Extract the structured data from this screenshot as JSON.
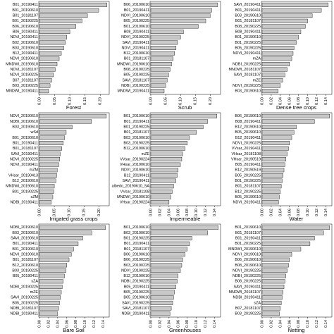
{
  "chart_data": [
    {
      "type": "bar",
      "orientation": "horizontal",
      "x_label": "Forest",
      "color": "#c8c8c8",
      "categories": [
        "B01_20190411",
        "B01_20190610",
        "B01_20181107",
        "B01_20190225",
        "B06_20190610",
        "B06_20190411",
        "NDVI_20190411",
        "B02_20190610",
        "B03_20190610",
        "B12_20190411",
        "NDVI_20190610",
        "MNDWI_20190610",
        "NDVI_20181107",
        "NDVI_20190225",
        "B07_20181107",
        "B03_20190225",
        "MNDWI_20190411"
      ],
      "values": [
        0.222,
        0.195,
        0.158,
        0.14,
        0.12,
        0.1,
        0.09,
        0.085,
        0.08,
        0.072,
        0.065,
        0.058,
        0.052,
        0.046,
        0.04,
        0.035,
        0.03
      ],
      "xlim": [
        0,
        0.225
      ],
      "xticks": [
        {
          "value": 0,
          "label": "0.00"
        },
        0.05,
        {
          "value": 0.1,
          "label": "0.10"
        },
        0.15,
        {
          "value": 0.2,
          "label": "0.20"
        }
      ]
    },
    {
      "type": "bar",
      "orientation": "horizontal",
      "x_label": "Scrub",
      "color": "#c8c8c8",
      "categories": [
        "B06_20190610",
        "B01_20190411",
        "NDVI_20190610",
        "B05_20190225",
        "B01_20190610",
        "B08_20190411",
        "NDVI_20190225",
        "SAVI_20190411",
        "NDVI_20190411",
        "B12_20190610",
        "B01_20181107",
        "MNDWI_20190610",
        "B08_20190225",
        "B05_20190225",
        "SAVI_20181107",
        "NDBI_20190225",
        "MNDWI_20190411"
      ],
      "values": [
        0.225,
        0.205,
        0.2,
        0.185,
        0.16,
        0.11,
        0.1,
        0.09,
        0.085,
        0.08,
        0.075,
        0.07,
        0.065,
        0.06,
        0.055,
        0.05,
        0.045
      ],
      "xlim": [
        0,
        0.23
      ],
      "xticks": [
        {
          "value": 0,
          "label": "0.00"
        },
        0.05,
        {
          "value": 0.1,
          "label": "0.10"
        },
        0.15,
        {
          "value": 0.2,
          "label": "0.20"
        }
      ]
    },
    {
      "type": "bar",
      "orientation": "horizontal",
      "x_label": "Dense tree crops",
      "color": "#c8c8c8",
      "categories": [
        "SAVI_20190411",
        "B01_20190411",
        "B03_20190610",
        "B01_20181107",
        "B08_20190225",
        "B08_20190411",
        "B01_20190610",
        "B01_20190225",
        "B05_20190225",
        "NDVI_20190411",
        "mZA",
        "NDBI_20190225",
        "MNDWI_20181107",
        "SAVI_20181107",
        "mZE",
        "NDVI_20190225",
        "B03_20190610"
      ],
      "values": [
        0.145,
        0.13,
        0.11,
        0.1,
        0.095,
        0.085,
        0.08,
        0.075,
        0.07,
        0.068,
        0.065,
        0.06,
        0.055,
        0.05,
        0.045,
        0.04,
        0.035
      ],
      "xlim": [
        0,
        0.15
      ],
      "xticks": [
        {
          "value": 0,
          "label": "0.00"
        },
        0.02,
        0.04,
        0.06,
        0.08,
        {
          "value": 0.1,
          "label": "0.10"
        },
        0.12,
        0.14
      ]
    },
    {
      "type": "bar",
      "orientation": "horizontal",
      "x_label": "Irrigated grass crops",
      "color": "#c8c8c8",
      "categories": [
        "NDVI_20190610",
        "NDBI_20190610",
        "B03_20190610",
        "wSd",
        "B01_20190610",
        "B01_20190411",
        "B01_20181107",
        "SAVI_20190411",
        "NDVI_20190225",
        "NDVI_20190411",
        "mZM",
        "VHsar_20190413",
        "B12_20190610",
        "MNDWI_20190610",
        "B01_20190225",
        "sZM",
        "NDBI_20190411"
      ],
      "values": [
        0.225,
        0.175,
        0.11,
        0.09,
        0.085,
        0.08,
        0.075,
        0.07,
        0.068,
        0.065,
        0.06,
        0.058,
        0.055,
        0.05,
        0.048,
        0.045,
        0.04
      ],
      "xlim": [
        0,
        0.23
      ],
      "xticks": [
        {
          "value": 0,
          "label": "0.00"
        },
        0.05,
        {
          "value": 0.1,
          "label": "0.10"
        },
        0.15,
        {
          "value": 0.2,
          "label": "0.20"
        }
      ]
    },
    {
      "type": "bar",
      "orientation": "horizontal",
      "x_label": "Impermeable",
      "color": "#c8c8c8",
      "categories": [
        "B01_20190610",
        "B01_20190411",
        "B01_20190225",
        "B01_20181107",
        "B03_20190610",
        "B03_20190225",
        "B12_20190610",
        "mZE",
        "VVsar_20190224",
        "VHsar_20190610",
        "NDVI_20190610",
        "B12_20190411",
        "SAVI_20190411",
        "albedo_20190610_SA",
        "VVsar_20181108",
        "MNDWI_20190610",
        "VHsar_20190224"
      ],
      "values": [
        0.145,
        0.125,
        0.115,
        0.1,
        0.085,
        0.08,
        0.075,
        0.07,
        0.068,
        0.065,
        0.06,
        0.058,
        0.055,
        0.05,
        0.047,
        0.044,
        0.04
      ],
      "xlim": [
        0,
        0.15
      ],
      "xticks": [
        {
          "value": 0,
          "label": "0.00"
        },
        0.02,
        0.04,
        0.06,
        0.08,
        {
          "value": 0.1,
          "label": "0.10"
        },
        0.12,
        0.14
      ]
    },
    {
      "type": "bar",
      "orientation": "horizontal",
      "x_label": "Water",
      "color": "#c8c8c8",
      "categories": [
        "B06_20190610",
        "B08_20190411",
        "B12_20190610",
        "B05_20190610",
        "B12_20190411",
        "NDVI_20190225",
        "VVsar_20190411",
        "VHsar_20181108",
        "VHsar_20190519",
        "B05_20190411",
        "B12_20190519",
        "B05_20190225",
        "B01_20190225",
        "B01_20181107",
        "B12_20190225",
        "B05_20190610",
        "NDVI_20190411"
      ],
      "values": [
        0.148,
        0.115,
        0.075,
        0.07,
        0.065,
        0.06,
        0.058,
        0.055,
        0.052,
        0.05,
        0.048,
        0.046,
        0.044,
        0.042,
        0.04,
        0.038,
        0.036
      ],
      "xlim": [
        0,
        0.15
      ],
      "xticks": [
        {
          "value": 0,
          "label": "0.00"
        },
        0.02,
        0.04,
        0.06,
        0.08,
        {
          "value": 0.1,
          "label": "0.10"
        },
        0.12,
        0.14
      ]
    },
    {
      "type": "bar",
      "orientation": "horizontal",
      "x_label": "Bare Soil",
      "color": "#c8c8c8",
      "categories": [
        "NDBI_20190610",
        "B03_20190610",
        "SAVI_20190610",
        "B01_20190411",
        "B01_20190610",
        "NDVI_20190610",
        "B01_20181107",
        "B12_20190610",
        "B03_20190225",
        "B05_20190411",
        "sZA",
        "NDBI_20190225",
        "mZE",
        "SAVI_20190225",
        "B05_20190225",
        "NDBI_20181107",
        "NDBI_20190411"
      ],
      "values": [
        0.145,
        0.115,
        0.095,
        0.085,
        0.075,
        0.07,
        0.065,
        0.06,
        0.058,
        0.055,
        0.052,
        0.05,
        0.048,
        0.046,
        0.044,
        0.042,
        0.04
      ],
      "xlim": [
        0,
        0.15
      ],
      "xticks": [
        {
          "value": 0,
          "label": "0.00"
        },
        0.02,
        0.04,
        0.06,
        0.08,
        {
          "value": 0.1,
          "label": "0.10"
        },
        0.12,
        0.14
      ]
    },
    {
      "type": "bar",
      "orientation": "horizontal",
      "x_label": "Greenhouses",
      "color": "#c8c8c8",
      "categories": [
        "B01_20190610",
        "B03_20190610",
        "B01_20190225",
        "B01_20190411",
        "B01_20181107",
        "B06_20190610",
        "B06_20190225",
        "B03_20190225",
        "NDVI_20190225",
        "B12_20190610",
        "NDBI_20190225",
        "B05_20190411",
        "B05_20190225",
        "B05_20190610",
        "SAVI_20190225",
        "SAVI_20181107",
        "NDBI_20190411"
      ],
      "values": [
        0.148,
        0.125,
        0.09,
        0.085,
        0.08,
        0.075,
        0.07,
        0.068,
        0.065,
        0.06,
        0.058,
        0.055,
        0.052,
        0.05,
        0.048,
        0.045,
        0.042
      ],
      "xlim": [
        0,
        0.15
      ],
      "xticks": [
        {
          "value": 0,
          "label": "0.00"
        },
        0.02,
        0.04,
        0.06,
        0.08,
        {
          "value": 0.1,
          "label": "0.10"
        },
        0.12,
        0.14
      ]
    },
    {
      "type": "bar",
      "orientation": "horizontal",
      "x_label": "Netting",
      "color": "#c8c8c8",
      "categories": [
        "B01_20190610",
        "B01_20181107",
        "B01_20190411",
        "B01_20190225",
        "MNDWI_20190610",
        "NDVI_20190610",
        "B06_20190610",
        "B08_20190610",
        "NDVI_20190225",
        "NDBI_20190225",
        "B08_20190225",
        "SAVI_20190411",
        "MNDWI_20181107",
        "NDBI_20190411",
        "sZA",
        "B07_20181107",
        "B03_20190225"
      ],
      "values": [
        0.148,
        0.135,
        0.115,
        0.105,
        0.085,
        0.065,
        0.06,
        0.058,
        0.055,
        0.052,
        0.05,
        0.048,
        0.046,
        0.044,
        0.042,
        0.04,
        0.038
      ],
      "xlim": [
        0,
        0.15
      ],
      "xticks": [
        {
          "value": 0,
          "label": "0.00"
        },
        0.02,
        0.04,
        0.06,
        0.08,
        {
          "value": 0.1,
          "label": "0.10"
        },
        0.12,
        0.14
      ]
    }
  ]
}
